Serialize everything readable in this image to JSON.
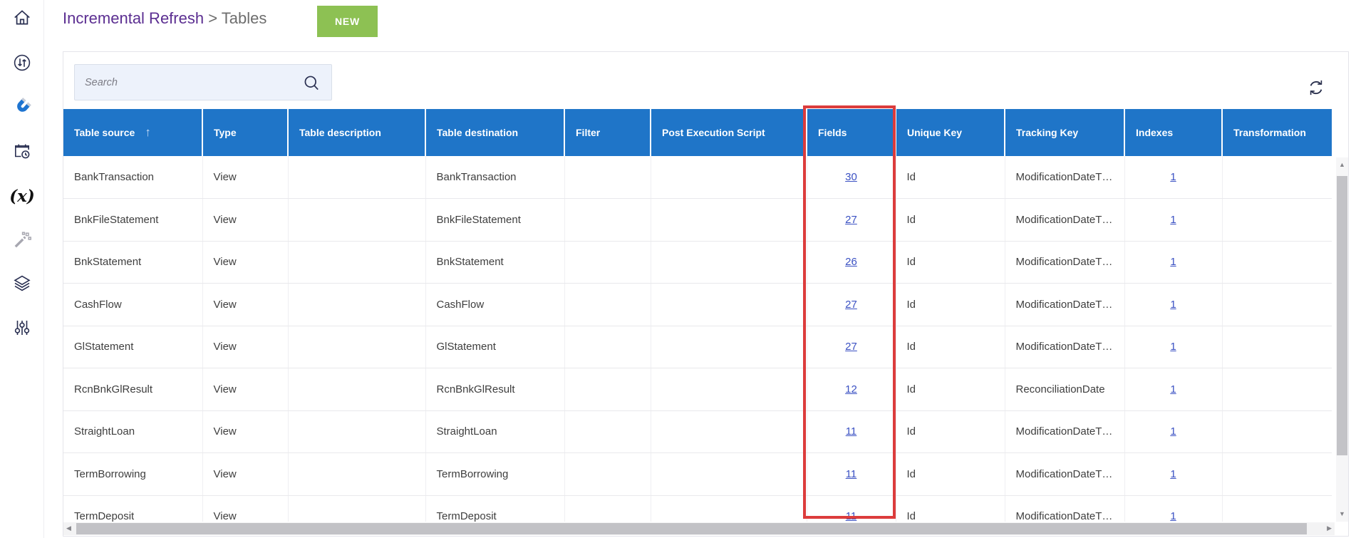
{
  "breadcrumb": {
    "primary": "Incremental Refresh",
    "separator": ">",
    "secondary": "Tables"
  },
  "actions": {
    "new_button": "NEW"
  },
  "search": {
    "placeholder": "Search"
  },
  "sidebar": {
    "items": [
      {
        "id": "home",
        "icon": "home-icon"
      },
      {
        "id": "sync",
        "icon": "sync-arrows-icon"
      },
      {
        "id": "magnet",
        "icon": "magnet-icon",
        "active": true
      },
      {
        "id": "schedule",
        "icon": "calendar-clock-icon"
      },
      {
        "id": "functions",
        "icon": "function-x-icon",
        "glyph": "(x)"
      },
      {
        "id": "wand",
        "icon": "magic-wand-icon"
      },
      {
        "id": "layers",
        "icon": "layers-icon"
      },
      {
        "id": "sliders",
        "icon": "sliders-icon"
      }
    ]
  },
  "table": {
    "columns": [
      "Table source",
      "Type",
      "Table description",
      "Table destination",
      "Filter",
      "Post Execution Script",
      "Fields",
      "Unique Key",
      "Tracking Key",
      "Indexes",
      "Transformation"
    ],
    "sorted_column": "Table source",
    "sort_direction": "ascending",
    "rows": [
      {
        "source": "BankTransaction",
        "type": "View",
        "description": "",
        "destination": "BankTransaction",
        "filter": "",
        "post_execution_script": "",
        "fields": "30",
        "unique_key": "Id",
        "tracking_key": "ModificationDateT…",
        "indexes": "1",
        "transformation": ""
      },
      {
        "source": "BnkFileStatement",
        "type": "View",
        "description": "",
        "destination": "BnkFileStatement",
        "filter": "",
        "post_execution_script": "",
        "fields": "27",
        "unique_key": "Id",
        "tracking_key": "ModificationDateT…",
        "indexes": "1",
        "transformation": ""
      },
      {
        "source": "BnkStatement",
        "type": "View",
        "description": "",
        "destination": "BnkStatement",
        "filter": "",
        "post_execution_script": "",
        "fields": "26",
        "unique_key": "Id",
        "tracking_key": "ModificationDateT…",
        "indexes": "1",
        "transformation": ""
      },
      {
        "source": "CashFlow",
        "type": "View",
        "description": "",
        "destination": "CashFlow",
        "filter": "",
        "post_execution_script": "",
        "fields": "27",
        "unique_key": "Id",
        "tracking_key": "ModificationDateT…",
        "indexes": "1",
        "transformation": ""
      },
      {
        "source": "GlStatement",
        "type": "View",
        "description": "",
        "destination": "GlStatement",
        "filter": "",
        "post_execution_script": "",
        "fields": "27",
        "unique_key": "Id",
        "tracking_key": "ModificationDateT…",
        "indexes": "1",
        "transformation": ""
      },
      {
        "source": "RcnBnkGlResult",
        "type": "View",
        "description": "",
        "destination": "RcnBnkGlResult",
        "filter": "",
        "post_execution_script": "",
        "fields": "12",
        "unique_key": "Id",
        "tracking_key": "ReconciliationDate",
        "indexes": "1",
        "transformation": ""
      },
      {
        "source": "StraightLoan",
        "type": "View",
        "description": "",
        "destination": "StraightLoan",
        "filter": "",
        "post_execution_script": "",
        "fields": "11",
        "unique_key": "Id",
        "tracking_key": "ModificationDateT…",
        "indexes": "1",
        "transformation": ""
      },
      {
        "source": "TermBorrowing",
        "type": "View",
        "description": "",
        "destination": "TermBorrowing",
        "filter": "",
        "post_execution_script": "",
        "fields": "11",
        "unique_key": "Id",
        "tracking_key": "ModificationDateT…",
        "indexes": "1",
        "transformation": ""
      },
      {
        "source": "TermDeposit",
        "type": "View",
        "description": "",
        "destination": "TermDeposit",
        "filter": "",
        "post_execution_script": "",
        "fields": "11",
        "unique_key": "Id",
        "tracking_key": "ModificationDateT…",
        "indexes": "1",
        "transformation": ""
      }
    ]
  },
  "annotation": {
    "highlighted_column": "Fields",
    "color": "#dc3c3c"
  },
  "colors": {
    "header_blue": "#1f75c8",
    "breadcrumb_purple": "#5b2e91",
    "new_button_green": "#8dc153",
    "link_blue": "#3b51c3",
    "magnet_blue": "#1e74d0",
    "highlight_red": "#dc3c3c"
  }
}
